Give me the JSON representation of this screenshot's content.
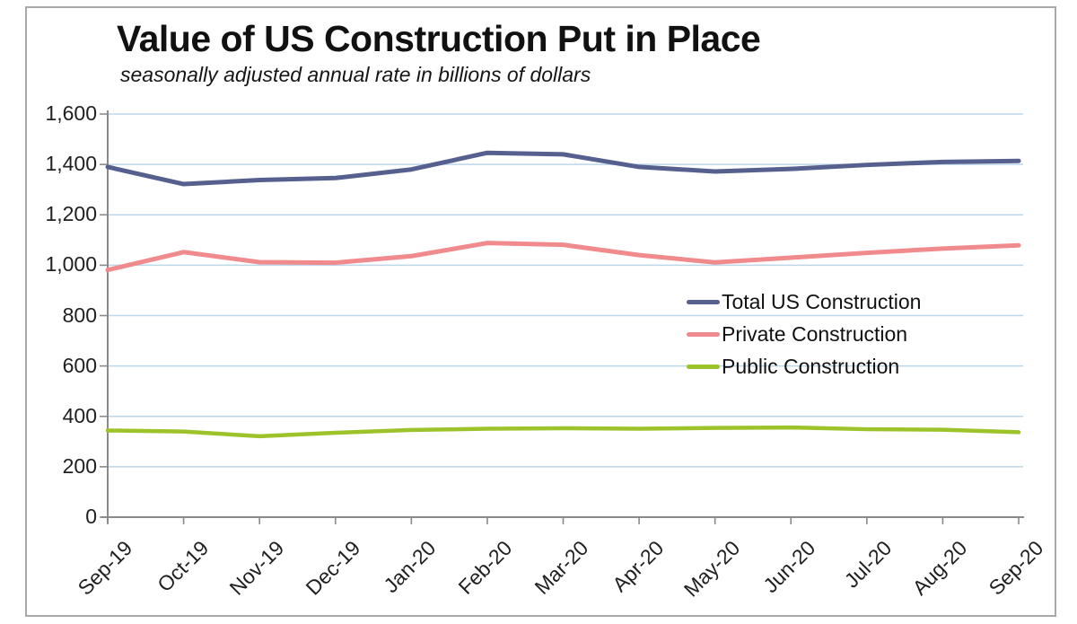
{
  "chart_data": {
    "type": "line",
    "title": "Value of US Construction Put in Place",
    "subtitle": "seasonally adjusted annual rate in billions of dollars",
    "categories": [
      "Sep-19",
      "Oct-19",
      "Nov-19",
      "Dec-19",
      "Jan-20",
      "Feb-20",
      "Mar-20",
      "Apr-20",
      "May-20",
      "Jun-20",
      "Jul-20",
      "Aug-20",
      "Sep-20"
    ],
    "series": [
      {
        "name": "Total US Construction",
        "color": "#56608F",
        "values": [
          1390,
          1322,
          1338,
          1346,
          1380,
          1446,
          1440,
          1390,
          1372,
          1382,
          1398,
          1410,
          1414
        ]
      },
      {
        "name": "Private Construction",
        "color": "#F08A8C",
        "values": [
          981,
          1052,
          1012,
          1010,
          1036,
          1088,
          1081,
          1040,
          1011,
          1030,
          1049,
          1066,
          1079
        ]
      },
      {
        "name": "Public Construction",
        "color": "#9DC32B",
        "values": [
          344,
          340,
          321,
          335,
          346,
          351,
          353,
          351,
          354,
          356,
          349,
          347,
          337
        ]
      }
    ],
    "xlabel": "",
    "ylabel": "",
    "ylim": [
      0,
      1600
    ],
    "ytick_step": 200,
    "ytick_labels": [
      "0",
      "200",
      "400",
      "600",
      "800",
      "1,000",
      "1,200",
      "1,400",
      "1,600"
    ],
    "grid": true,
    "legend_position": "inside-right-middle",
    "colors": {
      "gridline": "#BCD6EA",
      "axis": "#8A8A8A",
      "text": "#1F1F1F",
      "frame_border": "#A8A8A8"
    }
  }
}
